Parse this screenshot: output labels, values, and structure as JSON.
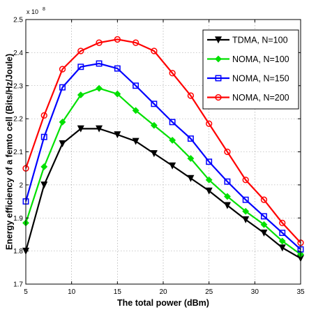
{
  "chart_data": {
    "type": "line",
    "xlabel": "The total power (dBm)",
    "ylabel": "Energy efficiency of a femto cell (Bits/Hz/Joule)",
    "y_multiplier_label": "x 10",
    "y_multiplier_exponent": "8",
    "xlim": [
      5,
      35
    ],
    "ylim": [
      1.7,
      2.5
    ],
    "x_ticks": [
      5,
      10,
      15,
      20,
      25,
      30,
      35
    ],
    "y_ticks": [
      1.7,
      1.8,
      1.9,
      2.0,
      2.1,
      2.2,
      2.3,
      2.4,
      2.5
    ],
    "y_tick_labels": [
      "1.7",
      "1.8",
      "1.9",
      "2",
      "2.1",
      "2.2",
      "2.3",
      "2.4",
      "2.5"
    ],
    "grid": true,
    "legend_position": "top-right",
    "x": [
      5,
      7,
      9,
      11,
      13,
      15,
      17,
      19,
      21,
      23,
      25,
      27,
      29,
      31,
      33,
      35
    ],
    "series": [
      {
        "name": "TDMA, N=100",
        "color": "#000000",
        "marker": "triangle-down",
        "values": [
          1.8,
          2.0,
          2.125,
          2.17,
          2.17,
          2.152,
          2.132,
          2.095,
          2.058,
          2.02,
          1.982,
          1.938,
          1.895,
          1.855,
          1.81,
          1.778
        ]
      },
      {
        "name": "NOMA, N=100",
        "color": "#00e000",
        "marker": "diamond",
        "values": [
          1.885,
          2.055,
          2.19,
          2.272,
          2.292,
          2.275,
          2.225,
          2.18,
          2.135,
          2.08,
          2.015,
          1.965,
          1.92,
          1.88,
          1.83,
          1.79
        ]
      },
      {
        "name": "NOMA, N=150",
        "color": "#0000ff",
        "marker": "square",
        "values": [
          1.95,
          2.145,
          2.295,
          2.357,
          2.367,
          2.352,
          2.3,
          2.245,
          2.19,
          2.14,
          2.07,
          2.01,
          1.955,
          1.905,
          1.855,
          1.805
        ]
      },
      {
        "name": "NOMA, N=200",
        "color": "#ff0000",
        "marker": "circle",
        "values": [
          2.05,
          2.21,
          2.35,
          2.405,
          2.43,
          2.44,
          2.43,
          2.405,
          2.338,
          2.27,
          2.185,
          2.1,
          2.015,
          1.955,
          1.885,
          1.825
        ]
      }
    ]
  }
}
